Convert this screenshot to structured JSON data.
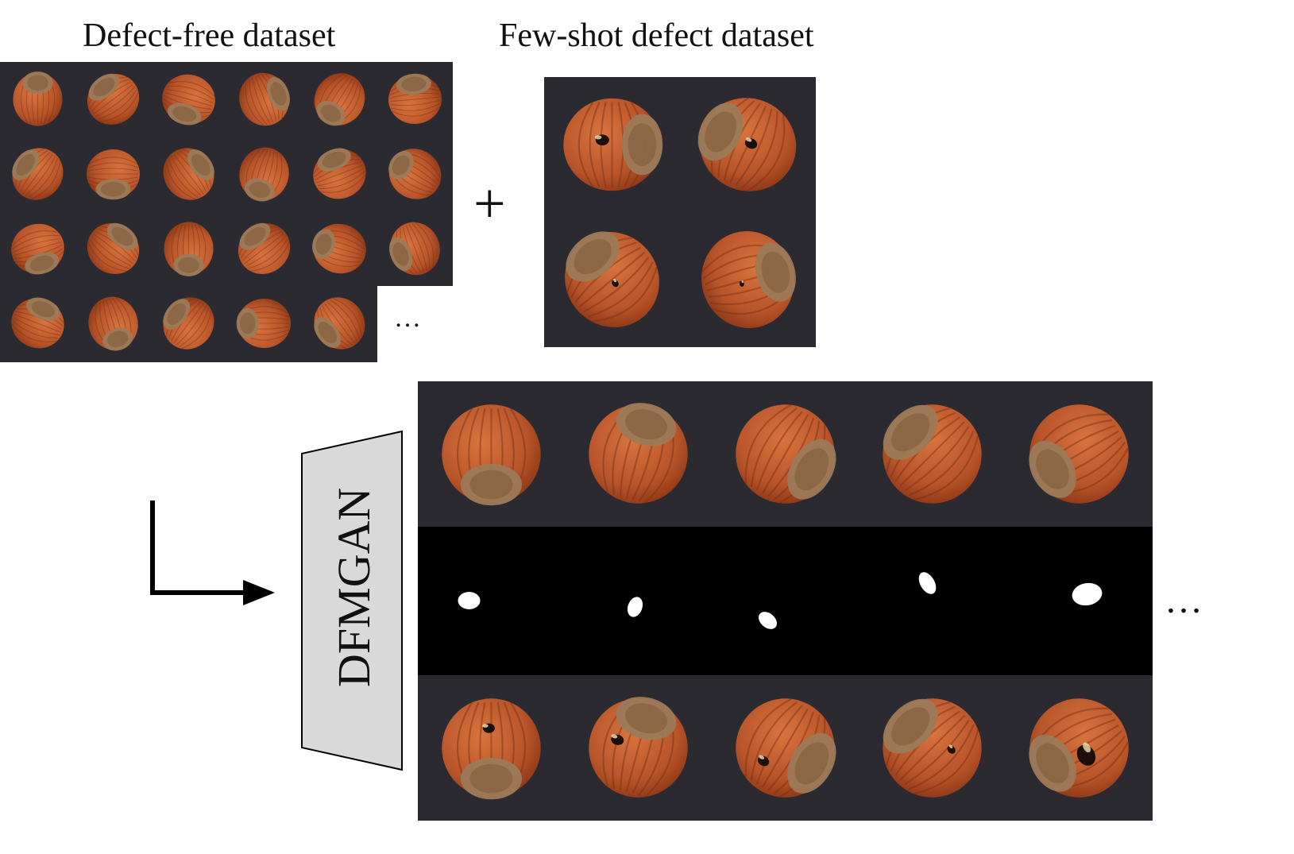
{
  "titles": {
    "defect_free": "Defect-free dataset",
    "few_shot": "Few-shot defect dataset"
  },
  "operators": {
    "plus": "+",
    "ellipsis": "…",
    "ellipsis_output": "…"
  },
  "generator": {
    "label": "DFMGAN",
    "fill": "#d9d9d9"
  },
  "colors": {
    "panel_bg": "#2b2a31",
    "nut_body": "#b8552a",
    "nut_dark": "#8a3515",
    "nut_cap": "#9c7a58",
    "hole": "#1a0f0a",
    "mask_bg": "#000000",
    "mask_fg": "#ffffff"
  },
  "defect_free_grid": {
    "rows": 4,
    "cols": 6,
    "last_row_count": 5
  },
  "few_shot_grid": {
    "rows": 2,
    "cols": 2
  },
  "output": {
    "columns": 5,
    "rows": [
      "generated-normal",
      "defect-mask",
      "generated-defect"
    ]
  }
}
